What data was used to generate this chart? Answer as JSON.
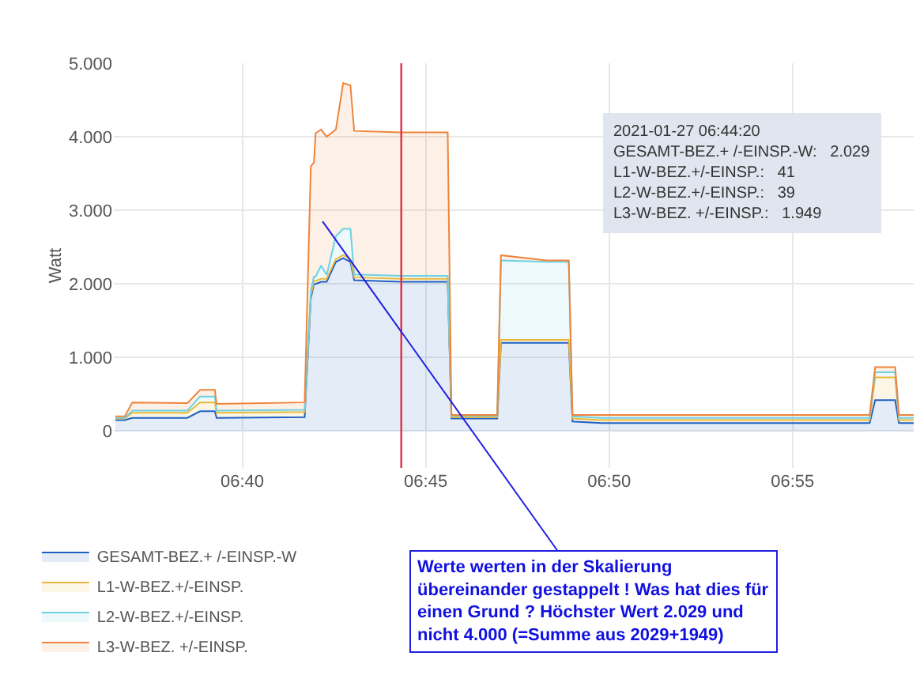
{
  "chart_data": {
    "type": "area",
    "stacked": true,
    "ylabel": "Watt",
    "x": [
      6.609,
      6.6133,
      6.6167,
      6.6417,
      6.6475,
      6.6542,
      6.655,
      6.695,
      6.6978,
      6.6992,
      6.7,
      6.7025,
      6.705,
      6.7092,
      6.7125,
      6.7158,
      6.7175,
      6.7389,
      6.76,
      6.7617,
      6.7825,
      6.7842,
      6.805,
      6.815,
      6.8167,
      6.83,
      6.9517,
      6.9542,
      6.9633,
      6.965,
      6.9717
    ],
    "series": [
      {
        "name": "GESAMT-BEZ.+ /-EINSP.-W",
        "color": "#1f60c4",
        "values": [
          150,
          150,
          180,
          180,
          270,
          270,
          180,
          190,
          1800,
          2000,
          2000,
          2030,
          2030,
          2300,
          2350,
          2300,
          2050,
          2030,
          2030,
          170,
          170,
          1200,
          1200,
          1200,
          130,
          110,
          110,
          420,
          420,
          110,
          110
        ]
      },
      {
        "name": "L1-W-BEZ.+/-EINSP.",
        "color": "#eab839",
        "values": [
          20,
          20,
          70,
          70,
          120,
          120,
          70,
          70,
          40,
          40,
          40,
          40,
          40,
          40,
          40,
          40,
          40,
          40,
          40,
          20,
          20,
          40,
          40,
          40,
          40,
          40,
          40,
          310,
          310,
          40,
          40
        ]
      },
      {
        "name": "L2-W-BEZ.+/-EINSP.",
        "color": "#6ed0e0",
        "values": [
          10,
          10,
          30,
          30,
          80,
          80,
          30,
          30,
          60,
          60,
          60,
          180,
          50,
          310,
          360,
          410,
          40,
          40,
          40,
          20,
          20,
          1080,
          1060,
          1060,
          30,
          30,
          30,
          70,
          70,
          30,
          30
        ]
      },
      {
        "name": "L3-W-BEZ. +/-EINSP.",
        "color": "#ef843c",
        "values": [
          20,
          20,
          110,
          100,
          90,
          90,
          90,
          100,
          1700,
          1550,
          1950,
          1850,
          1880,
          1450,
          1980,
          1950,
          1950,
          1950,
          1950,
          10,
          10,
          70,
          20,
          20,
          20,
          40,
          40,
          70,
          70,
          40,
          40
        ]
      }
    ],
    "xlim": [
      6.6083,
      6.9717
    ],
    "xticks": [
      {
        "value": 6.666667,
        "label": "06:40"
      },
      {
        "value": 6.75,
        "label": "06:45"
      },
      {
        "value": 6.833333,
        "label": "06:50"
      },
      {
        "value": 6.916667,
        "label": "06:55"
      }
    ],
    "ylim": [
      -500,
      5000
    ],
    "yticks": [
      {
        "value": 0,
        "label": "0"
      },
      {
        "value": 1000,
        "label": "1.000"
      },
      {
        "value": 2000,
        "label": "2.000"
      },
      {
        "value": 3000,
        "label": "3.000"
      },
      {
        "value": 4000,
        "label": "4.000"
      },
      {
        "value": 5000,
        "label": "5.000"
      }
    ],
    "grid": true,
    "legend": "bottom left",
    "ref_lines": [
      {
        "axis": "x",
        "value": 6.7389,
        "color": "#e02f44"
      }
    ],
    "annotations": [
      "2021-01-27 06:44:20\nGESAMT-BEZ.+ /-EINSP.-W:   2.029\nL1-W-BEZ.+/-EINSP.:   41\nL2-W-BEZ.+/-EINSP.:   39\nL3-W-BEZ. +/-EINSP.:   1.949",
      "Werte werten in der Skalierung\nübereinander gestappelt ! Was hat dies für\neinen Grund ? Höchster Wert 2.029 und\nnicht 4.000 (=Summe aus 2029+1949)"
    ]
  }
}
